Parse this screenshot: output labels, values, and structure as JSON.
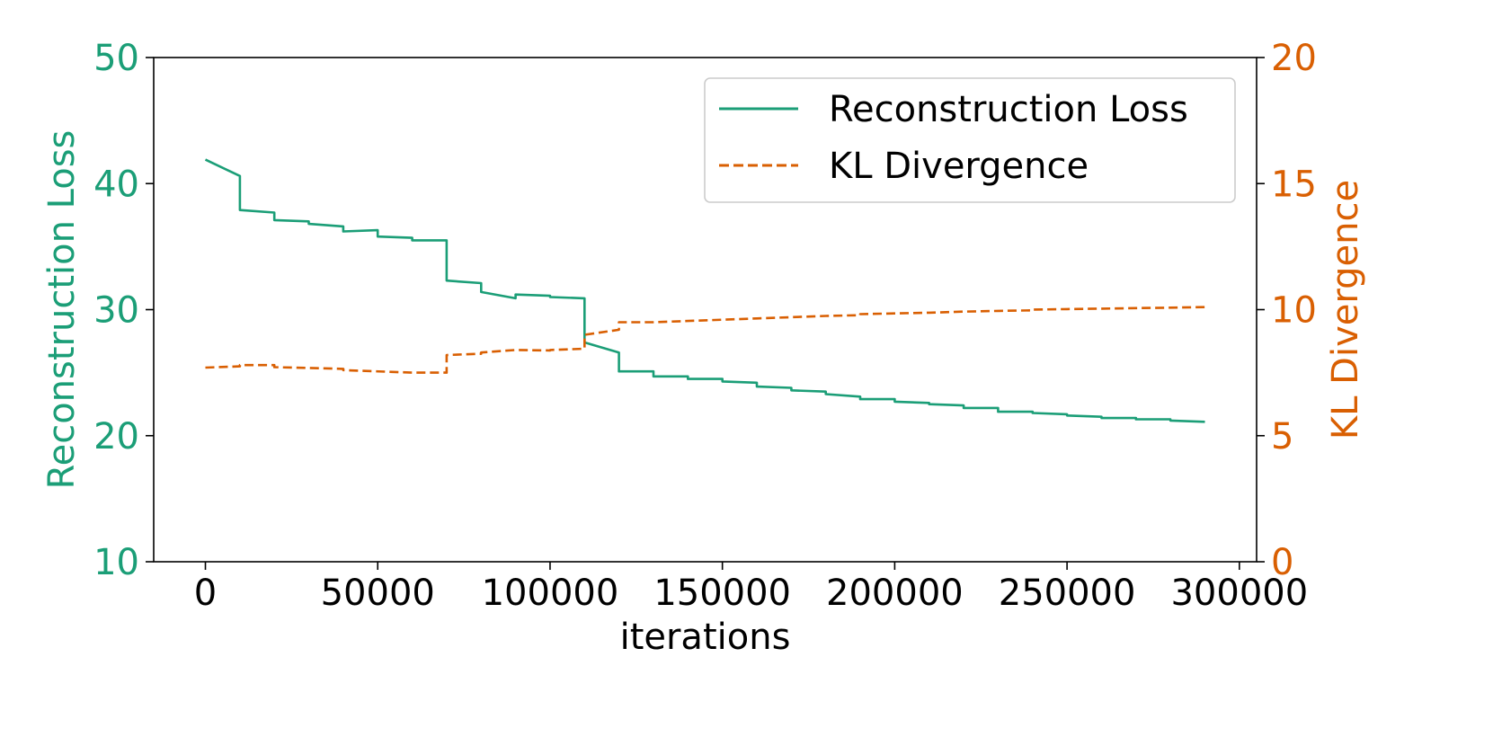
{
  "colors": {
    "recon": "#1b9e77",
    "kl": "#d95f02",
    "axis": "#000000"
  },
  "chart_data": {
    "type": "line",
    "xlabel": "iterations",
    "xlim": [
      -15000,
      305000
    ],
    "x_ticks": [
      {
        "value": 0,
        "label": "0"
      },
      {
        "value": 50000,
        "label": "50000"
      },
      {
        "value": 100000,
        "label": "100000"
      },
      {
        "value": 150000,
        "label": "150000"
      },
      {
        "value": 200000,
        "label": "200000"
      },
      {
        "value": 250000,
        "label": "250000"
      },
      {
        "value": 300000,
        "label": "300000"
      }
    ],
    "y_left": {
      "label": "Reconstruction Loss",
      "lim": [
        10,
        50
      ],
      "ticks": [
        {
          "value": 10,
          "label": "10"
        },
        {
          "value": 20,
          "label": "20"
        },
        {
          "value": 30,
          "label": "30"
        },
        {
          "value": 40,
          "label": "40"
        },
        {
          "value": 50,
          "label": "50"
        }
      ]
    },
    "y_right": {
      "label": "KL Divergence",
      "lim": [
        0,
        20
      ],
      "ticks": [
        {
          "value": 0,
          "label": "0"
        },
        {
          "value": 5,
          "label": "5"
        },
        {
          "value": 10,
          "label": "10"
        },
        {
          "value": 15,
          "label": "15"
        },
        {
          "value": 20,
          "label": "20"
        }
      ]
    },
    "legend": {
      "placement": "top-right"
    },
    "series": [
      {
        "name": "Reconstruction Loss",
        "axis": "left",
        "style": "solid",
        "points": [
          [
            0,
            41.9
          ],
          [
            10000,
            40.6
          ],
          [
            10000,
            37.9
          ],
          [
            20000,
            37.7
          ],
          [
            20000,
            37.1
          ],
          [
            30000,
            37.0
          ],
          [
            30000,
            36.8
          ],
          [
            40000,
            36.6
          ],
          [
            40000,
            36.2
          ],
          [
            50000,
            36.3
          ],
          [
            50000,
            35.8
          ],
          [
            60000,
            35.7
          ],
          [
            60000,
            35.5
          ],
          [
            70000,
            35.5
          ],
          [
            70000,
            32.3
          ],
          [
            80000,
            32.1
          ],
          [
            80000,
            31.4
          ],
          [
            90000,
            30.9
          ],
          [
            90000,
            31.2
          ],
          [
            100000,
            31.1
          ],
          [
            100000,
            31.0
          ],
          [
            110000,
            30.9
          ],
          [
            110000,
            27.4
          ],
          [
            120000,
            26.6
          ],
          [
            120000,
            25.1
          ],
          [
            130000,
            25.1
          ],
          [
            130000,
            24.7
          ],
          [
            140000,
            24.7
          ],
          [
            140000,
            24.5
          ],
          [
            150000,
            24.5
          ],
          [
            150000,
            24.3
          ],
          [
            160000,
            24.2
          ],
          [
            160000,
            23.9
          ],
          [
            170000,
            23.8
          ],
          [
            170000,
            23.6
          ],
          [
            180000,
            23.5
          ],
          [
            180000,
            23.3
          ],
          [
            190000,
            23.1
          ],
          [
            190000,
            22.9
          ],
          [
            200000,
            22.9
          ],
          [
            200000,
            22.7
          ],
          [
            210000,
            22.6
          ],
          [
            210000,
            22.5
          ],
          [
            220000,
            22.4
          ],
          [
            220000,
            22.2
          ],
          [
            230000,
            22.2
          ],
          [
            230000,
            21.9
          ],
          [
            240000,
            21.9
          ],
          [
            240000,
            21.8
          ],
          [
            250000,
            21.7
          ],
          [
            250000,
            21.6
          ],
          [
            260000,
            21.5
          ],
          [
            260000,
            21.4
          ],
          [
            270000,
            21.4
          ],
          [
            270000,
            21.3
          ],
          [
            280000,
            21.3
          ],
          [
            280000,
            21.2
          ],
          [
            290000,
            21.1
          ]
        ]
      },
      {
        "name": "KL Divergence",
        "axis": "right",
        "style": "dashed",
        "points": [
          [
            0,
            7.7
          ],
          [
            10000,
            7.75
          ],
          [
            10000,
            7.8
          ],
          [
            20000,
            7.8
          ],
          [
            20000,
            7.72
          ],
          [
            40000,
            7.65
          ],
          [
            40000,
            7.6
          ],
          [
            60000,
            7.5
          ],
          [
            70000,
            7.5
          ],
          [
            70000,
            8.2
          ],
          [
            80000,
            8.25
          ],
          [
            80000,
            8.3
          ],
          [
            90000,
            8.4
          ],
          [
            100000,
            8.38
          ],
          [
            100000,
            8.4
          ],
          [
            110000,
            8.45
          ],
          [
            110000,
            9.0
          ],
          [
            120000,
            9.2
          ],
          [
            120000,
            9.5
          ],
          [
            130000,
            9.5
          ],
          [
            140000,
            9.55
          ],
          [
            150000,
            9.6
          ],
          [
            160000,
            9.65
          ],
          [
            170000,
            9.7
          ],
          [
            180000,
            9.75
          ],
          [
            190000,
            9.78
          ],
          [
            190000,
            9.82
          ],
          [
            200000,
            9.85
          ],
          [
            210000,
            9.88
          ],
          [
            220000,
            9.92
          ],
          [
            230000,
            9.95
          ],
          [
            240000,
            9.97
          ],
          [
            240000,
            10.0
          ],
          [
            250000,
            10.02
          ],
          [
            260000,
            10.04
          ],
          [
            270000,
            10.06
          ],
          [
            280000,
            10.08
          ],
          [
            290000,
            10.1
          ]
        ]
      }
    ]
  }
}
